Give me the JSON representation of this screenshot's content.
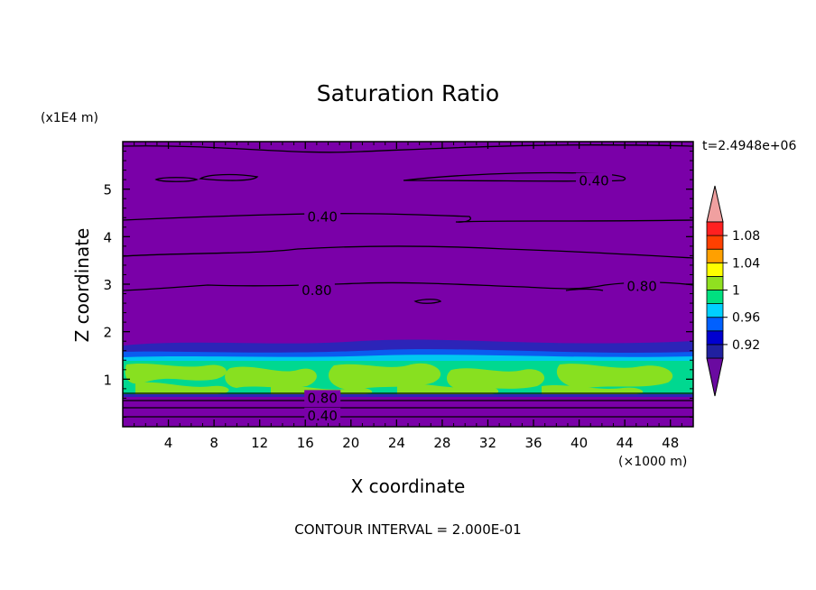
{
  "chart_data": {
    "type": "contour",
    "title": "Saturation Ratio",
    "xlabel": "X coordinate",
    "ylabel": "Z coordinate",
    "x_unit": "(×1000 m)",
    "y_unit": "(x1E4 m)",
    "time_label": "t=2.4948e+06",
    "footer": "CONTOUR INTERVAL = 2.000E-01",
    "xlim": [
      0,
      50
    ],
    "ylim": [
      0,
      6
    ],
    "x_ticks": [
      "4",
      "8",
      "12",
      "16",
      "20",
      "24",
      "28",
      "32",
      "36",
      "40",
      "44",
      "48"
    ],
    "y_ticks": [
      "1",
      "2",
      "3",
      "4",
      "5"
    ],
    "contour_labels": [
      {
        "text": "0.40",
        "x": 41.3,
        "z": 5.17
      },
      {
        "text": "0.40",
        "x": 17.5,
        "z": 4.41
      },
      {
        "text": "0.80",
        "x": 17.0,
        "z": 2.87
      },
      {
        "text": "0.80",
        "x": 45.5,
        "z": 2.95
      },
      {
        "text": "0.80",
        "x": 17.5,
        "z": 0.6
      },
      {
        "text": "0.40",
        "x": 17.5,
        "z": 0.23
      }
    ],
    "colorbar": {
      "ticks": [
        "1.08",
        "1.04",
        "1",
        "0.96",
        "0.92"
      ],
      "colors": [
        "#6a0aa0",
        "#2020a0",
        "#0000d0",
        "#0060ff",
        "#00d0ff",
        "#00e080",
        "#90e020",
        "#ffff00",
        "#ffa000",
        "#ff4000",
        "#ff2020",
        "#f0a0a0"
      ]
    },
    "background_color": "#7a00a8"
  }
}
